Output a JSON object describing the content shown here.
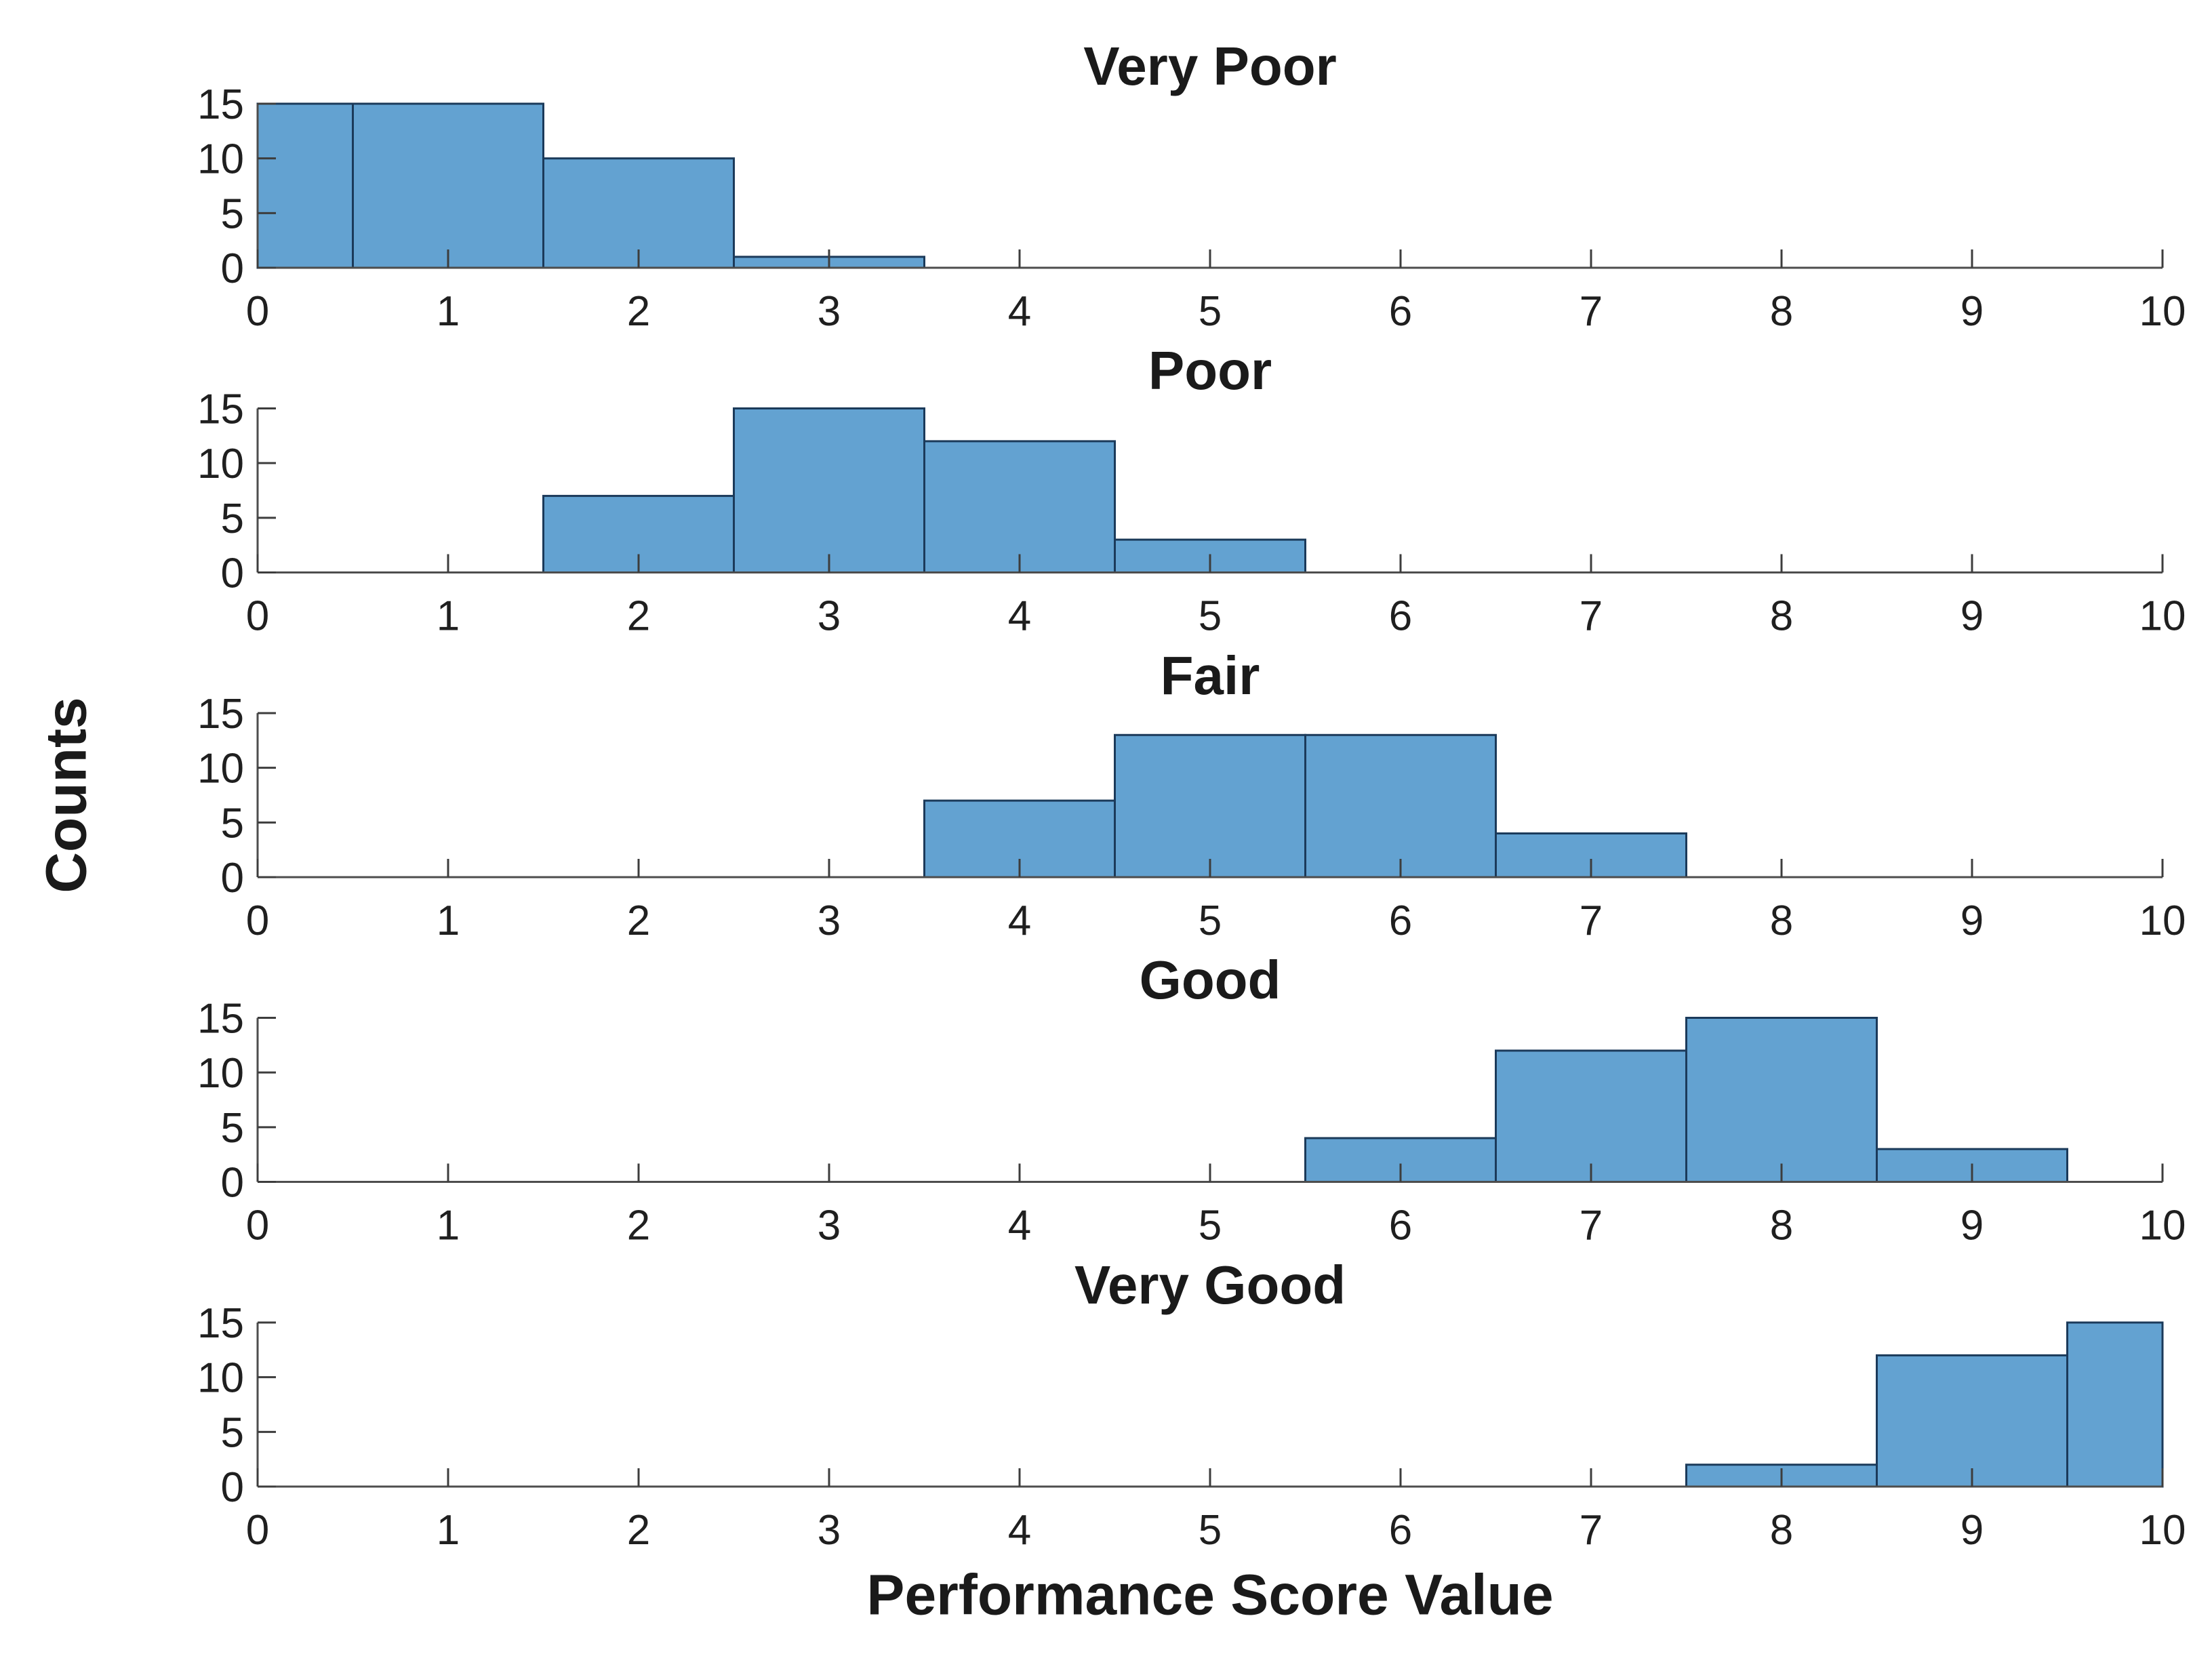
{
  "figure": {
    "xlabel": "Performance Score Value",
    "ylabel": "Counts",
    "background": "#ffffff",
    "colors": {
      "bar_fill": "#63a2d1",
      "bar_edge": "#1b3a5a",
      "axis_line": "#4d4d4d",
      "tick_mark": "#3d3d3d",
      "tick_label": "#1f1f1f",
      "title_text": "#1a1a1a"
    }
  },
  "chart_data": [
    {
      "type": "bar",
      "subtype": "histogram",
      "title": "Very Poor",
      "xlim": [
        0,
        10
      ],
      "ylim": [
        0,
        15
      ],
      "xticks": [
        0,
        1,
        2,
        3,
        4,
        5,
        6,
        7,
        8,
        9,
        10
      ],
      "yticks": [
        0,
        5,
        10,
        15
      ],
      "grid": false,
      "bins": [
        {
          "from": 0.0,
          "to": 0.5,
          "count": 15
        },
        {
          "from": 0.5,
          "to": 1.5,
          "count": 15
        },
        {
          "from": 1.5,
          "to": 2.5,
          "count": 10
        },
        {
          "from": 2.5,
          "to": 3.5,
          "count": 1
        }
      ]
    },
    {
      "type": "bar",
      "subtype": "histogram",
      "title": "Poor",
      "xlim": [
        0,
        10
      ],
      "ylim": [
        0,
        15
      ],
      "xticks": [
        0,
        1,
        2,
        3,
        4,
        5,
        6,
        7,
        8,
        9,
        10
      ],
      "yticks": [
        0,
        5,
        10,
        15
      ],
      "grid": false,
      "bins": [
        {
          "from": 1.5,
          "to": 2.5,
          "count": 7
        },
        {
          "from": 2.5,
          "to": 3.5,
          "count": 15
        },
        {
          "from": 3.5,
          "to": 4.5,
          "count": 12
        },
        {
          "from": 4.5,
          "to": 5.5,
          "count": 3
        }
      ]
    },
    {
      "type": "bar",
      "subtype": "histogram",
      "title": "Fair",
      "xlim": [
        0,
        10
      ],
      "ylim": [
        0,
        15
      ],
      "xticks": [
        0,
        1,
        2,
        3,
        4,
        5,
        6,
        7,
        8,
        9,
        10
      ],
      "yticks": [
        0,
        5,
        10,
        15
      ],
      "grid": false,
      "bins": [
        {
          "from": 3.5,
          "to": 4.5,
          "count": 7
        },
        {
          "from": 4.5,
          "to": 5.5,
          "count": 13
        },
        {
          "from": 5.5,
          "to": 6.5,
          "count": 13
        },
        {
          "from": 6.5,
          "to": 7.5,
          "count": 4
        }
      ]
    },
    {
      "type": "bar",
      "subtype": "histogram",
      "title": "Good",
      "xlim": [
        0,
        10
      ],
      "ylim": [
        0,
        15
      ],
      "xticks": [
        0,
        1,
        2,
        3,
        4,
        5,
        6,
        7,
        8,
        9,
        10
      ],
      "yticks": [
        0,
        5,
        10,
        15
      ],
      "grid": false,
      "bins": [
        {
          "from": 5.5,
          "to": 6.5,
          "count": 4
        },
        {
          "from": 6.5,
          "to": 7.5,
          "count": 12
        },
        {
          "from": 7.5,
          "to": 8.5,
          "count": 15
        },
        {
          "from": 8.5,
          "to": 9.5,
          "count": 3
        }
      ]
    },
    {
      "type": "bar",
      "subtype": "histogram",
      "title": "Very Good",
      "xlim": [
        0,
        10
      ],
      "ylim": [
        0,
        15
      ],
      "xticks": [
        0,
        1,
        2,
        3,
        4,
        5,
        6,
        7,
        8,
        9,
        10
      ],
      "yticks": [
        0,
        5,
        10,
        15
      ],
      "grid": false,
      "bins": [
        {
          "from": 7.5,
          "to": 8.5,
          "count": 2
        },
        {
          "from": 8.5,
          "to": 9.5,
          "count": 12
        },
        {
          "from": 9.5,
          "to": 10.0,
          "count": 15
        }
      ]
    }
  ]
}
